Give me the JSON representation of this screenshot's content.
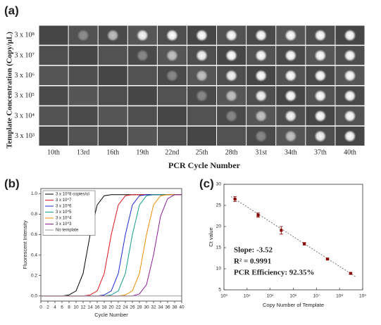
{
  "image_grid": {
    "panel_label": "(a)",
    "y_label": "Template Concentration (Copy/μL)",
    "x_label": "PCR Cycle Number",
    "rows": [
      "3 x 10⁸",
      "3 x 10⁷",
      "3 x 10⁶",
      "3 x 10⁵",
      "3 x 10⁴",
      "3 x 10³"
    ],
    "columns": [
      "10th",
      "13rd",
      "16th",
      "19th",
      "22nd",
      "25th",
      "28th",
      "31st",
      "34th",
      "37th",
      "40th"
    ]
  },
  "chart_data": [
    {
      "type": "line",
      "panel_label": "(b)",
      "x_label": "Cycle Number",
      "y_label": "Fluorescent Intensity",
      "x": [
        0,
        2,
        4,
        6,
        8,
        10,
        12,
        14,
        16,
        18,
        20,
        22,
        24,
        26,
        28,
        30,
        32,
        34,
        36,
        38,
        40
      ],
      "xlim": [
        0,
        40
      ],
      "xticks": [
        0,
        2,
        4,
        6,
        8,
        10,
        12,
        14,
        16,
        18,
        20,
        22,
        24,
        26,
        28,
        30,
        32,
        34,
        36,
        38,
        40
      ],
      "ylim": [
        -0.05,
        1.05
      ],
      "yticks": [
        {
          "value": 0,
          "label": "0.0"
        },
        0.2,
        0.4,
        0.6,
        0.8,
        {
          "value": 1,
          "label": "1.0"
        }
      ],
      "legend": "upper left",
      "series": [
        {
          "name": "3 x 10^8 copies/ul",
          "color": "#000000",
          "values": [
            0,
            0,
            0,
            0,
            0.01,
            0.05,
            0.22,
            0.6,
            0.89,
            0.98,
            0.99,
            0.99,
            0.99,
            0.99,
            0.99,
            0.99,
            0.99,
            0.99,
            0.99,
            0.99,
            0.99
          ]
        },
        {
          "name": "3 x 10^7",
          "color": "#e0141e",
          "values": [
            0,
            0,
            0,
            0,
            0,
            0,
            0,
            0.01,
            0.05,
            0.22,
            0.6,
            0.89,
            0.98,
            0.99,
            0.99,
            0.99,
            0.99,
            0.99,
            0.99,
            0.99,
            0.99
          ]
        },
        {
          "name": "3 x 10^6",
          "color": "#1e28d2",
          "values": [
            0,
            0,
            0,
            0,
            0,
            0,
            0,
            0,
            0,
            0.01,
            0.05,
            0.22,
            0.6,
            0.89,
            0.98,
            0.99,
            0.99,
            0.99,
            0.99,
            0.99,
            0.99
          ]
        },
        {
          "name": "3 x 10^5",
          "color": "#129a8c",
          "values": [
            0,
            0,
            0,
            0,
            0,
            0,
            0,
            0,
            0,
            0,
            0.01,
            0.05,
            0.22,
            0.6,
            0.89,
            0.98,
            0.99,
            0.99,
            0.99,
            0.99,
            0.99
          ]
        },
        {
          "name": "3 x 10^4",
          "color": "#f08c00",
          "values": [
            0,
            0,
            0,
            0,
            0,
            0,
            0,
            0,
            0,
            0,
            0,
            0,
            0.01,
            0.05,
            0.22,
            0.6,
            0.89,
            0.98,
            0.99,
            0.99,
            0.99
          ]
        },
        {
          "name": "3 x 10^3",
          "color": "#8c1e96",
          "values": [
            0,
            0,
            0,
            0,
            0,
            0,
            0,
            0,
            0,
            0,
            0,
            0,
            0,
            0,
            0.02,
            0.11,
            0.4,
            0.78,
            0.95,
            0.99,
            0.99
          ]
        },
        {
          "name": "No template",
          "color": "#9a9a9a",
          "values": [
            0,
            0,
            0,
            0,
            0,
            0,
            0,
            0,
            0,
            0,
            0,
            0,
            0,
            0,
            0,
            0,
            0,
            0,
            0,
            0,
            0
          ]
        }
      ]
    },
    {
      "type": "scatter",
      "panel_label": "(c)",
      "x_label": "Copy Number of Template",
      "y_label": "Ct value",
      "xscale": "log",
      "xlim": [
        1000,
        1000000000
      ],
      "xticks": [
        {
          "value": 1000,
          "label": "10³"
        },
        {
          "value": 10000,
          "label": "10⁴"
        },
        {
          "value": 100000,
          "label": "10⁵"
        },
        {
          "value": 1000000,
          "label": "10⁶"
        },
        {
          "value": 10000000,
          "label": "10⁷"
        },
        {
          "value": 100000000,
          "label": "10⁸"
        },
        {
          "value": 1000000000,
          "label": "10⁹"
        }
      ],
      "ylim": [
        5,
        30
      ],
      "yticks": [
        5,
        10,
        15,
        20,
        25,
        30
      ],
      "annotations": [
        "Slope: -3.52",
        "R² = 0.9991",
        "PCR Efficiency: 92.35%"
      ],
      "series": [
        {
          "color": "#8b0000",
          "x": [
            3000,
            30000,
            300000,
            3000000,
            30000000,
            300000000
          ],
          "values": [
            26.5,
            22.7,
            19.1,
            15.9,
            12.3,
            8.9
          ],
          "errors": [
            0.6,
            0.5,
            0.9,
            0.3,
            0.2,
            0.2
          ]
        }
      ],
      "trend_line": {
        "color": "#555555",
        "x": [
          2000,
          500000000
        ],
        "values": [
          27.1,
          8.1
        ]
      }
    }
  ]
}
